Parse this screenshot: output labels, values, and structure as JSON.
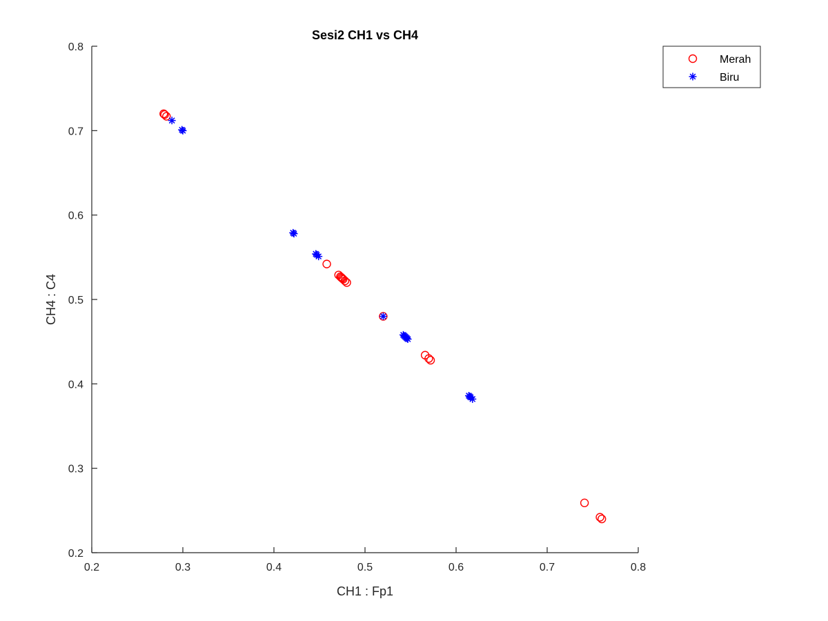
{
  "chart_data": {
    "type": "scatter",
    "title": "Sesi2 CH1 vs CH4",
    "xlabel": "CH1 : Fp1",
    "ylabel": "CH4 : C4",
    "xlim": [
      0.2,
      0.8
    ],
    "ylim": [
      0.2,
      0.8
    ],
    "xticks": [
      "0.2",
      "0.3",
      "0.4",
      "0.5",
      "0.6",
      "0.7",
      "0.8"
    ],
    "yticks": [
      "0.2",
      "0.3",
      "0.4",
      "0.5",
      "0.6",
      "0.7",
      "0.8"
    ],
    "grid": false,
    "legend_position": "top-right",
    "series": [
      {
        "name": "Merah",
        "marker": "circle",
        "color": "#ff0000",
        "points": [
          [
            0.279,
            0.72
          ],
          [
            0.28,
            0.719
          ],
          [
            0.282,
            0.717
          ],
          [
            0.458,
            0.542
          ],
          [
            0.471,
            0.529
          ],
          [
            0.473,
            0.527
          ],
          [
            0.474,
            0.526
          ],
          [
            0.475,
            0.525
          ],
          [
            0.476,
            0.524
          ],
          [
            0.478,
            0.522
          ],
          [
            0.48,
            0.52
          ],
          [
            0.52,
            0.48
          ],
          [
            0.566,
            0.434
          ],
          [
            0.57,
            0.43
          ],
          [
            0.572,
            0.428
          ],
          [
            0.741,
            0.259
          ],
          [
            0.758,
            0.242
          ],
          [
            0.76,
            0.24
          ]
        ]
      },
      {
        "name": "Biru",
        "marker": "asterisk",
        "color": "#0000ff",
        "points": [
          [
            0.288,
            0.712
          ],
          [
            0.299,
            0.701
          ],
          [
            0.3,
            0.7
          ],
          [
            0.421,
            0.579
          ],
          [
            0.422,
            0.578
          ],
          [
            0.446,
            0.554
          ],
          [
            0.447,
            0.553
          ],
          [
            0.449,
            0.551
          ],
          [
            0.52,
            0.48
          ],
          [
            0.542,
            0.458
          ],
          [
            0.543,
            0.457
          ],
          [
            0.544,
            0.456
          ],
          [
            0.545,
            0.455
          ],
          [
            0.546,
            0.454
          ],
          [
            0.547,
            0.453
          ],
          [
            0.614,
            0.386
          ],
          [
            0.615,
            0.385
          ],
          [
            0.616,
            0.384
          ],
          [
            0.618,
            0.382
          ]
        ]
      }
    ]
  }
}
